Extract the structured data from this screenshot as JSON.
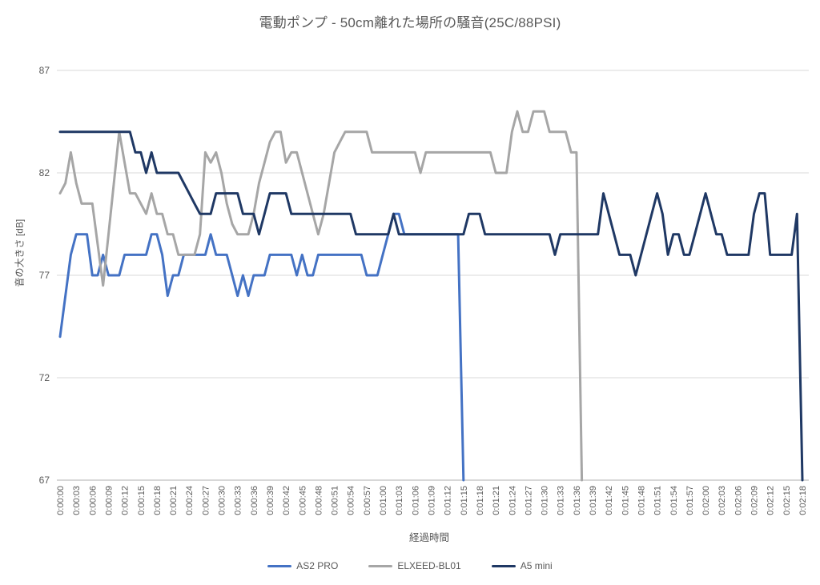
{
  "chart_data": {
    "type": "line",
    "title": "電動ポンプ - 50cm離れた場所の騒音(25C/88PSI)",
    "xlabel": "経過時間",
    "ylabel": "音の大きさ [dB]",
    "ylim": [
      67,
      87
    ],
    "yticks": [
      67,
      72,
      77,
      82,
      87
    ],
    "grid": "horizontal-only",
    "legend_position": "bottom-center",
    "sample_interval_s": 1,
    "x_tick_interval_s": 3,
    "x_total_s": 138,
    "x_tick_labels": [
      "0:00:00",
      "0:00:03",
      "0:00:06",
      "0:00:09",
      "0:00:12",
      "0:00:15",
      "0:00:18",
      "0:00:21",
      "0:00:24",
      "0:00:27",
      "0:00:30",
      "0:00:33",
      "0:00:36",
      "0:00:39",
      "0:00:42",
      "0:00:45",
      "0:00:48",
      "0:00:51",
      "0:00:54",
      "0:00:57",
      "0:01:00",
      "0:01:03",
      "0:01:06",
      "0:01:09",
      "0:01:12",
      "0:01:15",
      "0:01:18",
      "0:01:21",
      "0:01:24",
      "0:01:27",
      "0:01:30",
      "0:01:33",
      "0:01:36",
      "0:01:39",
      "0:01:42",
      "0:01:45",
      "0:01:48",
      "0:01:51",
      "0:01:54",
      "0:01:57",
      "0:02:00",
      "0:02:03",
      "0:02:06",
      "0:02:09",
      "0:02:12",
      "0:02:15",
      "0:02:18"
    ],
    "axis_colors": {
      "grid": "#D9D9D9",
      "axis_line": "#BFBFBF",
      "tick_text": "#595959"
    },
    "series": [
      {
        "name": "AS2 PRO",
        "color": "#4472C4",
        "start_s": 0,
        "values": [
          74,
          76,
          78,
          79,
          79,
          79,
          77,
          77,
          78,
          77,
          77,
          77,
          78,
          78,
          78,
          78,
          78,
          79,
          79,
          78,
          76,
          77,
          77,
          78,
          78,
          78,
          78,
          78,
          79,
          78,
          78,
          78,
          77,
          76,
          77,
          76,
          77,
          77,
          77,
          78,
          78,
          78,
          78,
          78,
          77,
          78,
          77,
          77,
          78,
          78,
          78,
          78,
          78,
          78,
          78,
          78,
          78,
          77,
          77,
          77,
          78,
          79,
          80,
          80,
          79,
          79,
          79,
          79,
          79,
          79,
          79,
          79,
          79,
          79,
          79,
          67
        ]
      },
      {
        "name": "ELXEED-BL01",
        "color": "#A6A6A6",
        "start_s": 0,
        "values": [
          81,
          81.5,
          83,
          81.5,
          80.5,
          80.5,
          80.5,
          78.5,
          76.5,
          79,
          81.5,
          84,
          82.5,
          81,
          81,
          80.5,
          80,
          81,
          80,
          80,
          79,
          79,
          78,
          78,
          78,
          78,
          79,
          83,
          82.5,
          83,
          82,
          80.5,
          79.5,
          79,
          79,
          79,
          80,
          81.5,
          82.5,
          83.5,
          84,
          84,
          82.5,
          83,
          83,
          82,
          81,
          80,
          79,
          80,
          81.5,
          83,
          83.5,
          84,
          84,
          84,
          84,
          84,
          83,
          83,
          83,
          83,
          83,
          83,
          83,
          83,
          83,
          82,
          83,
          83,
          83,
          83,
          83,
          83,
          83,
          83,
          83,
          83,
          83,
          83,
          83,
          82,
          82,
          82,
          84,
          85,
          84,
          84,
          85,
          85,
          85,
          84,
          84,
          84,
          84,
          83,
          83,
          67
        ]
      },
      {
        "name": "A5 mini",
        "color": "#1F3864",
        "start_s": 0,
        "values": [
          84,
          84,
          84,
          84,
          84,
          84,
          84,
          84,
          84,
          84,
          84,
          84,
          84,
          84,
          83,
          83,
          82,
          83,
          82,
          82,
          82,
          82,
          82,
          81.5,
          81,
          80.5,
          80,
          80,
          80,
          81,
          81,
          81,
          81,
          81,
          80,
          80,
          80,
          79,
          80,
          81,
          81,
          81,
          81,
          80,
          80,
          80,
          80,
          80,
          80,
          80,
          80,
          80,
          80,
          80,
          80,
          79,
          79,
          79,
          79,
          79,
          79,
          79,
          80,
          79,
          79,
          79,
          79,
          79,
          79,
          79,
          79,
          79,
          79,
          79,
          79,
          79,
          80,
          80,
          80,
          79,
          79,
          79,
          79,
          79,
          79,
          79,
          79,
          79,
          79,
          79,
          79,
          79,
          78,
          79,
          79,
          79,
          79,
          79,
          79,
          79,
          79,
          81,
          80,
          79,
          78,
          78,
          78,
          77,
          78,
          79,
          80,
          81,
          80,
          78,
          79,
          79,
          78,
          78,
          79,
          80,
          81,
          80,
          79,
          79,
          78,
          78,
          78,
          78,
          78,
          80,
          81,
          81,
          78,
          78,
          78,
          78,
          78,
          80,
          67
        ]
      }
    ]
  }
}
